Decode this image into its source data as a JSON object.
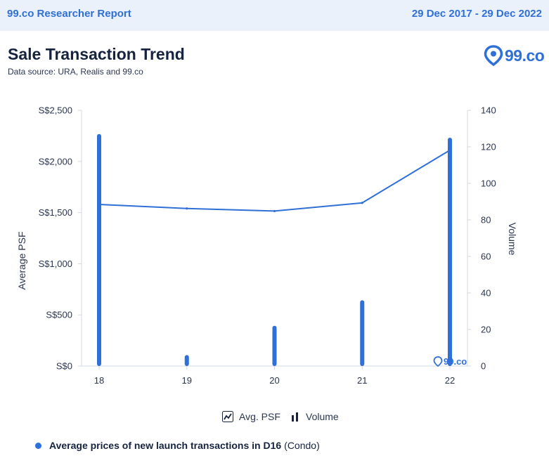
{
  "header": {
    "report_label": "99.co Researcher Report",
    "date_range": "29 Dec 2017 - 29 Dec 2022"
  },
  "title": "Sale Transaction Trend",
  "subtitle": "Data source: URA, Realis and 99.co",
  "brand": {
    "name": "99.co",
    "color": "#2f6fd8"
  },
  "watermark": "99.co",
  "legend": {
    "line_label": "Avg. PSF",
    "bar_label": "Volume",
    "line_icon": "line-chart-icon",
    "bar_icon": "bar-chart-icon"
  },
  "footnote": {
    "bold_text": "Average prices of new launch transactions in D16",
    "rest_text": "(Condo)"
  },
  "colors": {
    "accent": "#2f6fd8",
    "header_bg": "#eaf1fb",
    "text_dark": "#16233f"
  },
  "chart_data": {
    "type": "bar",
    "categories": [
      "18",
      "19",
      "20",
      "21",
      "22"
    ],
    "series": [
      {
        "name": "Avg. PSF",
        "type": "line",
        "axis": "left",
        "values": [
          1580,
          1540,
          1515,
          1595,
          2110
        ]
      },
      {
        "name": "Volume",
        "type": "bar",
        "axis": "right",
        "values": [
          127,
          6,
          22,
          36,
          125
        ]
      }
    ],
    "y_left": {
      "label": "Average PSF",
      "range": [
        0,
        2500
      ],
      "ticks": [
        0,
        500,
        1000,
        1500,
        2000,
        2500
      ],
      "tick_labels": [
        "S$0",
        "S$500",
        "S$1,000",
        "S$1,500",
        "S$2,000",
        "S$2,500"
      ]
    },
    "y_right": {
      "label": "Volume",
      "range": [
        0,
        140
      ],
      "ticks": [
        0,
        20,
        40,
        60,
        80,
        100,
        120,
        140
      ],
      "tick_labels": [
        "0",
        "20",
        "40",
        "60",
        "80",
        "100",
        "120",
        "140"
      ]
    },
    "grid": false,
    "legend_position": "bottom"
  }
}
